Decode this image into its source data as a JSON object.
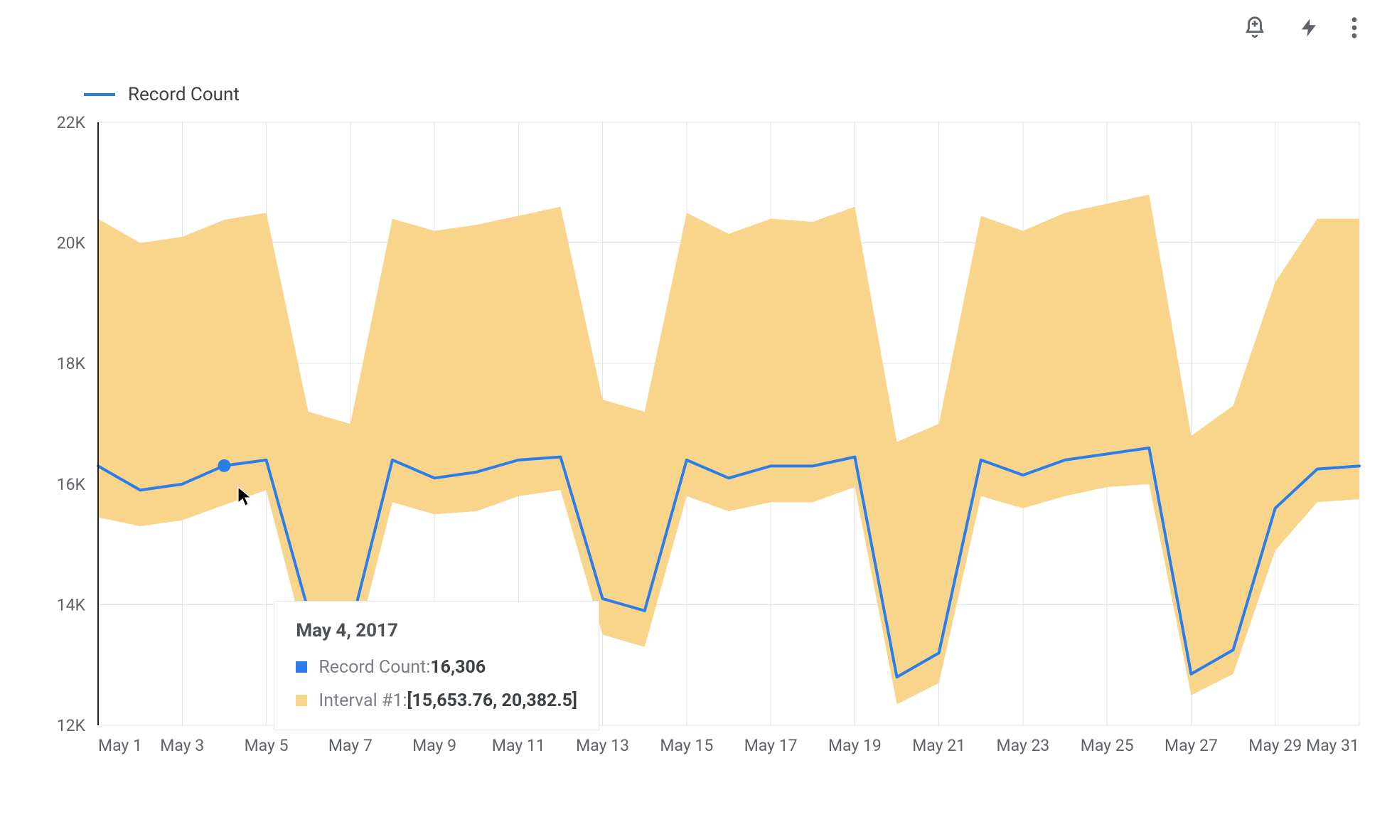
{
  "toolbar": {
    "icons": [
      "bell-plus-icon",
      "lightning-icon",
      "kebab-icon"
    ],
    "icon_color": "#5f6368"
  },
  "legend": {
    "label": "Record Count",
    "line_color": "#2b7de9",
    "text_color": "#3c4043"
  },
  "chart": {
    "type": "line-with-confidence-band",
    "background_color": "#ffffff",
    "grid_color": "#e3e3e3",
    "axis_color": "#5f6368",
    "axis_font_size": 23,
    "line_color": "#2b7de9",
    "line_width": 4,
    "band_color": "#f8d58a",
    "band_opacity": 1.0,
    "marker": {
      "day": 4,
      "value": 16306,
      "radius": 9,
      "color": "#2b7de9"
    },
    "x_categories": [
      "May 1",
      "May 2",
      "May 3",
      "May 4",
      "May 5",
      "May 6",
      "May 7",
      "May 8",
      "May 9",
      "May 10",
      "May 11",
      "May 12",
      "May 13",
      "May 14",
      "May 15",
      "May 16",
      "May 17",
      "May 18",
      "May 19",
      "May 20",
      "May 21",
      "May 22",
      "May 23",
      "May 24",
      "May 25",
      "May 26",
      "May 27",
      "May 28",
      "May 29",
      "May 30",
      "May 31"
    ],
    "x_tick_labels": [
      "May 1",
      "May 3",
      "May 5",
      "May 7",
      "May 9",
      "May 11",
      "May 13",
      "May 15",
      "May 17",
      "May 19",
      "May 21",
      "May 23",
      "May 25",
      "May 27",
      "May 29",
      "May 31"
    ],
    "x_tick_days": [
      1,
      3,
      5,
      7,
      9,
      11,
      13,
      15,
      17,
      19,
      21,
      23,
      25,
      27,
      29,
      31
    ],
    "y_ticks": [
      12000,
      14000,
      16000,
      18000,
      20000,
      22000
    ],
    "y_tick_labels": [
      "12K",
      "14K",
      "16K",
      "18K",
      "20K",
      "22K"
    ],
    "ylim": [
      12000,
      22000
    ],
    "series": [
      16300,
      15900,
      16000,
      16306,
      16400,
      13900,
      13600,
      16400,
      16100,
      16200,
      16400,
      16450,
      14100,
      13900,
      16400,
      16100,
      16300,
      16300,
      16450,
      12800,
      13200,
      16400,
      16150,
      16400,
      16500,
      16600,
      12850,
      13250,
      15600,
      16250,
      16300
    ],
    "band_lower": [
      15450,
      15300,
      15400,
      15654,
      15900,
      13200,
      12950,
      15700,
      15500,
      15550,
      15800,
      15900,
      13500,
      13300,
      15800,
      15550,
      15700,
      15700,
      15950,
      12350,
      12700,
      15800,
      15600,
      15800,
      15950,
      16000,
      12500,
      12850,
      14900,
      15700,
      15750
    ],
    "band_upper": [
      20400,
      20000,
      20100,
      20383,
      20500,
      17200,
      17000,
      20400,
      20200,
      20300,
      20450,
      20600,
      17400,
      17200,
      20500,
      20150,
      20400,
      20350,
      20600,
      16700,
      17000,
      20450,
      20200,
      20500,
      20650,
      20800,
      16800,
      17300,
      19350,
      20400,
      20400
    ]
  },
  "tooltip": {
    "date": "May 4, 2017",
    "rows": [
      {
        "swatch": "#2b7de9",
        "label": "Record Count: ",
        "value": "16,306"
      },
      {
        "swatch": "#f8d58a",
        "label": "Interval #1: ",
        "value": "[15,653.76, 20,382.5]"
      }
    ],
    "border_color": "#e6e6e6"
  },
  "cursor": {
    "x_offset_from_marker": 18,
    "y_offset_from_marker": 28
  }
}
